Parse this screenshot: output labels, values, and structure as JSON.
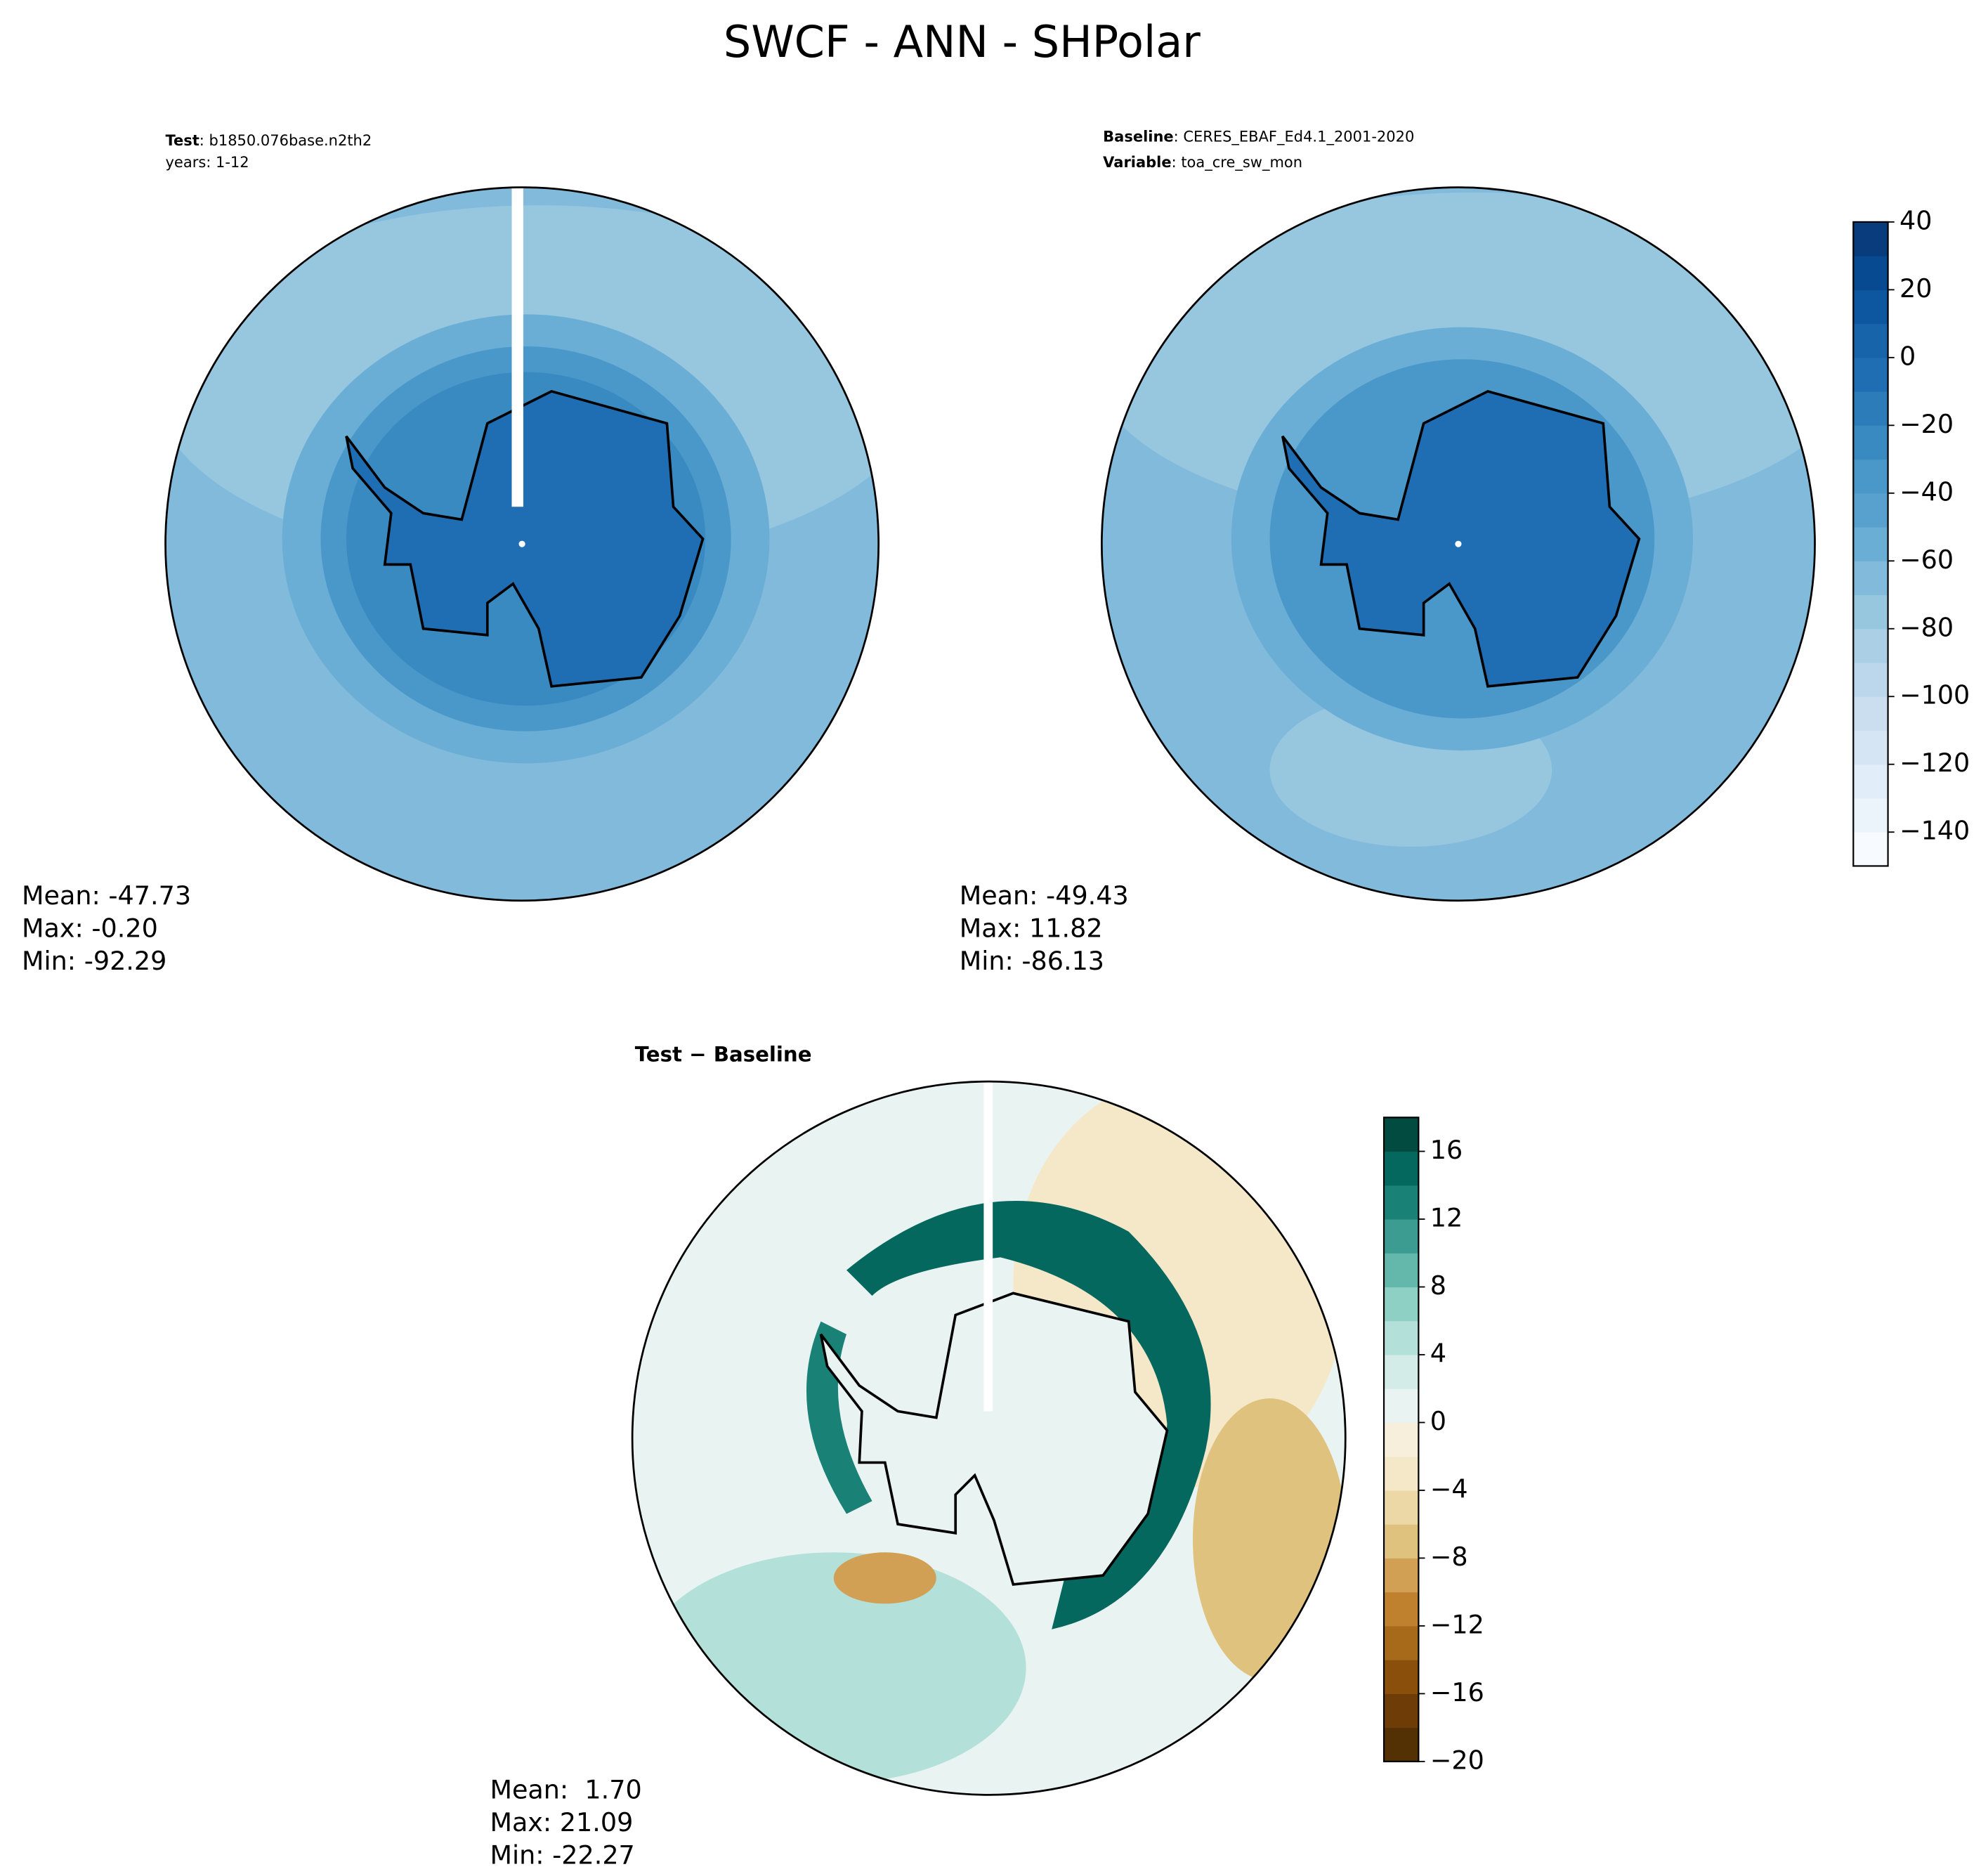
{
  "title": "SWCF - ANN - SHPolar",
  "panels": [
    {
      "line1_bold": "Test",
      "line1_rest": ": b1850.076base.n2th2",
      "line2": "years: 1-12",
      "stats": [
        "Mean: -47.73",
        "Max: -0.20",
        "Min: -92.29"
      ]
    },
    {
      "line1_bold": "Baseline",
      "line1_rest": ": CERES_EBAF_Ed4.1_2001-2020",
      "line2_bold": "Variable",
      "line2_rest": ": toa_cre_sw_mon",
      "stats": [
        "Mean: -49.43",
        "Max: 11.82",
        "Min: -86.13"
      ]
    },
    {
      "line1_bold": "Test − Baseline",
      "stats": [
        "Mean:  1.70",
        "Max: 21.09",
        "Min: -22.27"
      ]
    }
  ],
  "colorbars": [
    {
      "lim": [
        -150,
        40
      ],
      "ticks": [
        {
          "value": -140,
          "label": "−140"
        },
        {
          "value": -120,
          "label": "−120"
        },
        {
          "value": -100,
          "label": "−100"
        },
        {
          "value": -80,
          "label": "−80"
        },
        {
          "value": -60,
          "label": "−60"
        },
        {
          "value": -40,
          "label": "−40"
        },
        {
          "value": -20,
          "label": "−20"
        },
        0,
        20,
        40
      ],
      "colors": [
        "#f7fbff",
        "#ebf3fb",
        "#e1edf8",
        "#d5e5f4",
        "#cadef0",
        "#bcd7eb",
        "#abd0e6",
        "#97c6df",
        "#82badb",
        "#6aaed6",
        "#58a1cf",
        "#4a98c9",
        "#3a8ac2",
        "#2c7cba",
        "#1f6eb3",
        "#1764ab",
        "#0d57a1",
        "#084a91",
        "#083c7d"
      ]
    },
    {
      "lim": [
        -20,
        18
      ],
      "ticks": [
        {
          "value": -20,
          "label": "−20"
        },
        {
          "value": -16,
          "label": "−16"
        },
        {
          "value": -12,
          "label": "−12"
        },
        {
          "value": -8,
          "label": "−8"
        },
        {
          "value": -4,
          "label": "−4"
        },
        0,
        4,
        8,
        12,
        16
      ],
      "colors": [
        "#543005",
        "#6d3c07",
        "#8a500b",
        "#a66a1a",
        "#bf812d",
        "#d1a054",
        "#dfc27d",
        "#ecd8a6",
        "#f4e8c8",
        "#f7efdc",
        "#e9f4f2",
        "#d3ece8",
        "#b3e1da",
        "#8fd0c4",
        "#64b8ab",
        "#3c9c91",
        "#1a8177",
        "#05685e",
        "#014b40"
      ]
    }
  ]
}
